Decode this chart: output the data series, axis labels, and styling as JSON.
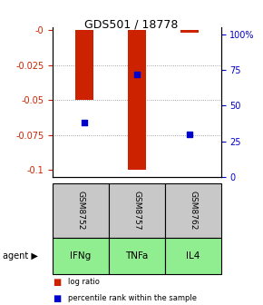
{
  "title": "GDS501 / 18778",
  "samples": [
    "GSM8752",
    "GSM8757",
    "GSM8762"
  ],
  "agents": [
    "IFNg",
    "TNFa",
    "IL4"
  ],
  "log_ratios": [
    -0.05,
    -0.1,
    -0.002
  ],
  "percentile_ranks": [
    0.38,
    0.72,
    0.3
  ],
  "bar_color": "#cc2200",
  "dot_color": "#0000cc",
  "ylim_left": [
    -0.105,
    0.002
  ],
  "yticks_left": [
    0,
    -0.025,
    -0.05,
    -0.075,
    -0.1
  ],
  "ytick_labels_left": [
    "-0",
    "-0.025",
    "-0.05",
    "-0.075",
    "-0.1"
  ],
  "yticks_right": [
    0,
    0.25,
    0.5,
    0.75,
    1.0
  ],
  "ytick_labels_right": [
    "0",
    "25",
    "50",
    "75",
    "100%"
  ],
  "sample_bg_color": "#c8c8c8",
  "agent_bg_color": "#90ee90",
  "grid_color": "#888888",
  "bar_width": 0.35
}
